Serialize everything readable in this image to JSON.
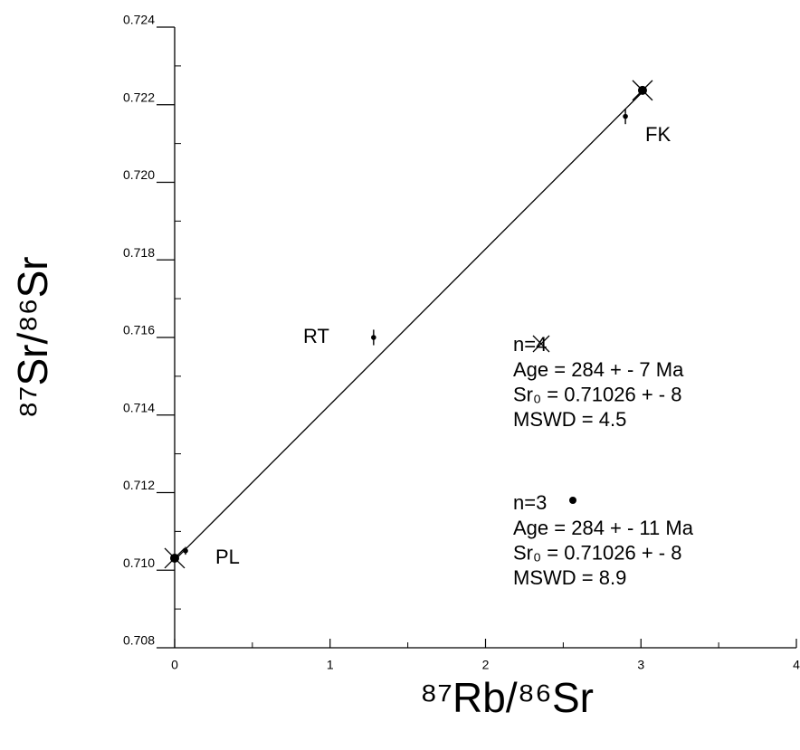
{
  "chart_data": {
    "type": "scatter",
    "x_label": "⁸⁷Rb/⁸⁶Sr",
    "y_label": "⁸⁷Sr/⁸⁶Sr",
    "xlim": [
      0,
      4
    ],
    "xticks": [
      0,
      1,
      2,
      3,
      4
    ],
    "ylim": [
      0.708,
      0.724
    ],
    "yticks": [
      0.708,
      {
        "value": 0.71,
        "label": "0.710"
      },
      0.712,
      0.714,
      0.716,
      0.718,
      {
        "value": 0.72,
        "label": "0.720"
      },
      0.722,
      0.724
    ],
    "color": "#000000",
    "series": [
      {
        "name": "n=4",
        "marker": "cross",
        "x": [
          0,
          3.01
        ],
        "y": [
          0.71031,
          0.72237
        ],
        "stats": [
          "Age = 284 + -  7 Ma",
          "Sr₀ = 0.71026 + - 8",
          "MSWD = 4.5"
        ]
      },
      {
        "name": "n=3",
        "marker": "dot",
        "x": [
          0.07,
          1.28,
          2.9
        ],
        "y": [
          0.7105,
          0.716,
          0.7217
        ],
        "yerr": [
          0.0001,
          0.0002,
          0.0002
        ],
        "stats": [
          "Age = 284 + -  11 Ma",
          "Sr₀ = 0.71026 + - 8",
          "MSWD = 8.9"
        ]
      }
    ],
    "fit_line": {
      "x": [
        0,
        3.02
      ],
      "y": [
        0.71026,
        0.72237
      ]
    },
    "point_labels": [
      "PL",
      "RT",
      "FK"
    ]
  }
}
